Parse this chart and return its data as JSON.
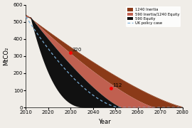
{
  "xlabel": "Year",
  "ylabel": "MtCO₂",
  "ylim": [
    0,
    600
  ],
  "xlim": [
    2010,
    2080
  ],
  "yticks": [
    0,
    100,
    200,
    300,
    400,
    500,
    600
  ],
  "xticks": [
    2010,
    2020,
    2030,
    2040,
    2050,
    2060,
    2070,
    2080
  ],
  "color_1240_inertia": "#8B3A18",
  "color_590_inertia_1240_equity": "#C06050",
  "color_590_equity": "#111111",
  "color_uk_policy": "#7aacd4",
  "ann1_x": 2030,
  "ann1_y": 320,
  "ann1_label": "320",
  "ann2_x": 2048,
  "ann2_y": 112,
  "ann2_label": "112",
  "bg_color": "#f0ede8"
}
